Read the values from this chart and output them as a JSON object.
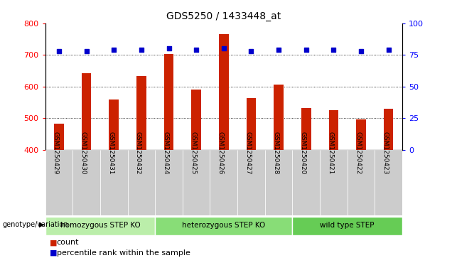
{
  "title": "GDS5250 / 1433448_at",
  "samples": [
    "GSM1250429",
    "GSM1250430",
    "GSM1250431",
    "GSM1250432",
    "GSM1250424",
    "GSM1250425",
    "GSM1250426",
    "GSM1250427",
    "GSM1250428",
    "GSM1250420",
    "GSM1250421",
    "GSM1250422",
    "GSM1250423"
  ],
  "counts": [
    483,
    641,
    558,
    632,
    703,
    589,
    766,
    564,
    606,
    531,
    524,
    496,
    530
  ],
  "percentiles": [
    78,
    78,
    79,
    79,
    80,
    79,
    80,
    78,
    79,
    79,
    79,
    78,
    79
  ],
  "groups": [
    {
      "label": "homozygous STEP KO",
      "start": 0,
      "end": 4
    },
    {
      "label": "heterozygous STEP KO",
      "start": 4,
      "end": 9
    },
    {
      "label": "wild type STEP",
      "start": 9,
      "end": 13
    }
  ],
  "group_colors": [
    "#BBEEAA",
    "#88DD77",
    "#66CC55"
  ],
  "bar_color": "#CC2200",
  "dot_color": "#0000CC",
  "ylim_left": [
    400,
    800
  ],
  "ylim_right": [
    0,
    100
  ],
  "yticks_left": [
    400,
    500,
    600,
    700,
    800
  ],
  "yticks_right": [
    0,
    25,
    50,
    75,
    100
  ],
  "grid_values": [
    500,
    600,
    700
  ],
  "legend_label_count": "count",
  "legend_label_percentile": "percentile rank within the sample",
  "genotype_label": "genotype/variation"
}
